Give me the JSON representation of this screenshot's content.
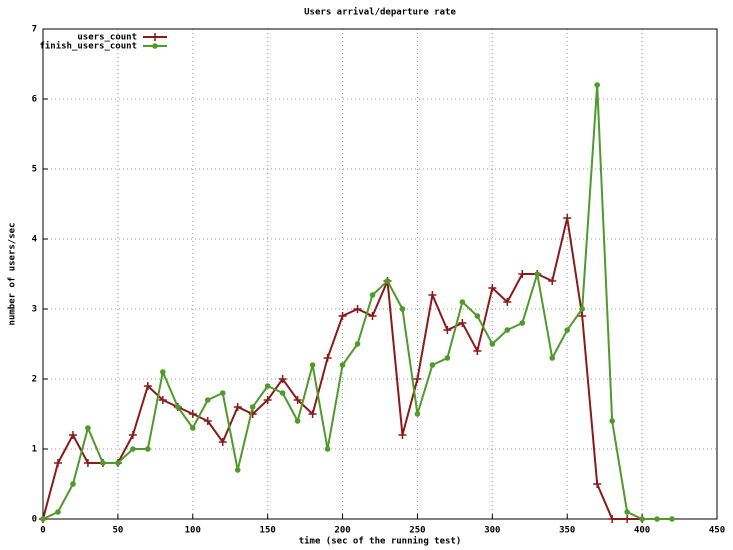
{
  "chart_data": {
    "type": "line",
    "title": "Users arrival/departure rate",
    "xlabel": "time (sec of the running test)",
    "ylabel": "number of users/sec",
    "x": [
      0,
      10,
      20,
      30,
      40,
      50,
      60,
      70,
      80,
      90,
      100,
      110,
      120,
      130,
      140,
      150,
      160,
      170,
      180,
      190,
      200,
      210,
      220,
      230,
      240,
      250,
      260,
      270,
      280,
      290,
      300,
      310,
      320,
      330,
      340,
      350,
      360,
      370,
      380,
      390,
      400,
      410,
      420
    ],
    "series": [
      {
        "name": "users_count",
        "color": "#8b1a1a",
        "marker": "plus",
        "values": [
          0,
          0.8,
          1.2,
          0.8,
          0.8,
          0.8,
          1.2,
          1.9,
          1.7,
          1.6,
          1.5,
          1.4,
          1.1,
          1.6,
          1.5,
          1.7,
          2.0,
          1.7,
          1.5,
          2.3,
          2.9,
          3.0,
          2.9,
          3.4,
          1.2,
          2.0,
          3.2,
          2.7,
          2.8,
          2.4,
          3.3,
          3.1,
          3.5,
          3.5,
          3.4,
          4.3,
          2.9,
          0.5,
          0,
          0,
          0,
          null,
          null
        ]
      },
      {
        "name": "finish_users_count",
        "color": "#4e9a2a",
        "marker": "circle",
        "values": [
          0,
          0.1,
          0.5,
          1.3,
          0.8,
          0.8,
          1.0,
          1.0,
          2.1,
          1.6,
          1.3,
          1.7,
          1.8,
          0.7,
          1.6,
          1.9,
          1.8,
          1.4,
          2.2,
          1.0,
          2.2,
          2.5,
          3.2,
          3.4,
          3.0,
          1.5,
          2.2,
          2.3,
          3.1,
          2.9,
          2.5,
          2.7,
          2.8,
          3.5,
          2.3,
          2.7,
          3.0,
          6.2,
          1.4,
          0.1,
          0,
          0,
          0
        ]
      }
    ],
    "xlim": [
      0,
      450
    ],
    "xticks": [
      0,
      50,
      100,
      150,
      200,
      250,
      300,
      350,
      400,
      450
    ],
    "ylim": [
      0,
      7
    ],
    "yticks": [
      0,
      1,
      2,
      3,
      4,
      5,
      6,
      7
    ],
    "grid": true,
    "legend": "top-left"
  }
}
